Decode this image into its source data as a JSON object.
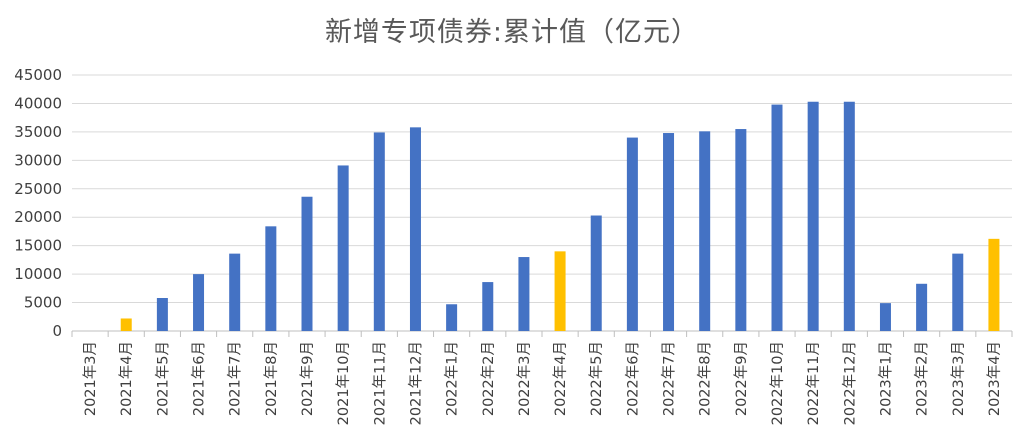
{
  "chart_data": {
    "type": "bar",
    "title": "新增专项债券:累计值（亿元）",
    "xlabel": "",
    "ylabel": "",
    "ylim": [
      0,
      45000
    ],
    "yticks": [
      0,
      5000,
      10000,
      15000,
      20000,
      25000,
      30000,
      35000,
      40000,
      45000
    ],
    "grid": true,
    "legend": "none",
    "colors": {
      "default": "#4472C4",
      "highlight": "#FFC000"
    },
    "categories": [
      "2021年3月",
      "2021年4月",
      "2021年5月",
      "2021年6月",
      "2021年7月",
      "2021年8月",
      "2021年9月",
      "2021年10月",
      "2021年11月",
      "2021年12月",
      "2022年1月",
      "2022年2月",
      "2022年3月",
      "2022年4月",
      "2022年5月",
      "2022年6月",
      "2022年7月",
      "2022年8月",
      "2022年9月",
      "2022年10月",
      "2022年11月",
      "2022年12月",
      "2023年1月",
      "2023年2月",
      "2023年3月",
      "2023年4月"
    ],
    "values": [
      0,
      2200,
      5800,
      10000,
      13600,
      18400,
      23600,
      29100,
      34900,
      35800,
      4700,
      8600,
      13000,
      14000,
      20300,
      34000,
      34800,
      35100,
      35500,
      39800,
      40300,
      40300,
      4900,
      8300,
      13600,
      16200
    ],
    "highlight": [
      false,
      true,
      false,
      false,
      false,
      false,
      false,
      false,
      false,
      false,
      false,
      false,
      false,
      true,
      false,
      false,
      false,
      false,
      false,
      false,
      false,
      false,
      false,
      false,
      false,
      true
    ]
  }
}
